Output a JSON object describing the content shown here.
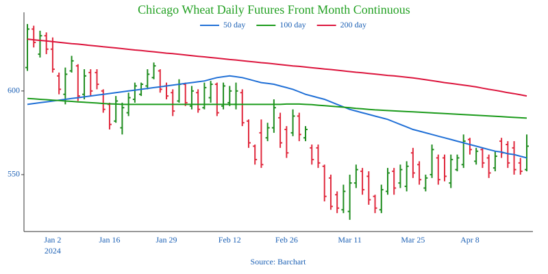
{
  "chart_data": {
    "type": "ohlc",
    "title": "Chicago Wheat Daily Futures Front Month Continuous",
    "source": "Source: Barchart",
    "title_color": "#22a022",
    "text_color": "#1a5fb4",
    "year_label": "2024",
    "categories": [
      null,
      null,
      null,
      null,
      "Jan 2",
      null,
      null,
      null,
      null,
      null,
      null,
      null,
      null,
      "Jan 16",
      null,
      null,
      null,
      null,
      null,
      null,
      null,
      null,
      "Jan 29",
      null,
      null,
      null,
      null,
      null,
      null,
      null,
      null,
      null,
      "Feb 12",
      null,
      null,
      null,
      null,
      null,
      null,
      null,
      null,
      "Feb 26",
      null,
      null,
      null,
      null,
      null,
      null,
      null,
      null,
      null,
      "Mar 11",
      null,
      null,
      null,
      null,
      null,
      null,
      null,
      null,
      null,
      "Mar 25",
      null,
      null,
      null,
      null,
      null,
      null,
      null,
      null,
      "Apr 8",
      null,
      null,
      null,
      null,
      null,
      null,
      null,
      null,
      null
    ],
    "ylim": [
      516,
      647
    ],
    "yticks": [
      550,
      600
    ],
    "up_color": "#1e8c1e",
    "down_color": "#e0283c",
    "open": [
      614,
      637,
      622,
      633,
      625,
      609,
      598,
      612,
      615,
      598,
      611,
      611,
      600,
      592,
      582,
      578,
      587,
      595,
      598,
      603,
      608,
      612,
      603,
      599,
      594,
      604,
      591,
      599,
      590,
      596,
      604,
      591,
      593,
      592,
      599,
      582,
      567,
      575,
      572,
      578,
      584,
      577,
      575,
      585,
      572,
      566,
      566,
      555,
      548,
      538,
      529,
      528,
      545,
      552,
      549,
      537,
      529,
      540,
      552,
      545,
      543,
      563,
      556,
      542,
      550,
      560,
      560,
      545,
      553,
      556,
      571,
      558,
      565,
      560,
      554,
      570,
      568,
      566,
      557,
      553
    ],
    "high": [
      640,
      639,
      636,
      635,
      632,
      611,
      614,
      621,
      616,
      613,
      613,
      613,
      601,
      593,
      597,
      593,
      599,
      605,
      605,
      613,
      617,
      613,
      605,
      601,
      607,
      605,
      603,
      601,
      605,
      606,
      605,
      605,
      603,
      605,
      601,
      583,
      568,
      583,
      581,
      595,
      587,
      579,
      589,
      587,
      579,
      568,
      568,
      556,
      550,
      540,
      544,
      550,
      556,
      554,
      552,
      538,
      544,
      554,
      554,
      556,
      558,
      566,
      558,
      550,
      568,
      562,
      562,
      562,
      562,
      574,
      572,
      566,
      566,
      562,
      564,
      572,
      570,
      570,
      560,
      574
    ],
    "low": [
      612,
      626,
      620,
      622,
      611,
      598,
      592,
      611,
      594,
      595,
      597,
      601,
      587,
      577,
      581,
      574,
      585,
      593,
      597,
      601,
      607,
      599,
      595,
      585,
      593,
      591,
      589,
      587,
      589,
      593,
      585,
      589,
      591,
      589,
      579,
      566,
      556,
      554,
      570,
      575,
      566,
      560,
      573,
      570,
      570,
      556,
      554,
      534,
      529,
      527,
      527,
      523,
      542,
      538,
      532,
      527,
      527,
      538,
      538,
      542,
      540,
      548,
      544,
      540,
      548,
      544,
      546,
      542,
      552,
      554,
      562,
      556,
      554,
      548,
      552,
      560,
      554,
      550,
      550,
      552
    ],
    "close": [
      637,
      629,
      633,
      625,
      613,
      601,
      610,
      618,
      597,
      609,
      600,
      604,
      589,
      580,
      594,
      590,
      596,
      603,
      604,
      610,
      615,
      601,
      597,
      588,
      604,
      593,
      600,
      589,
      602,
      604,
      587,
      603,
      600,
      600,
      581,
      569,
      559,
      556,
      578,
      590,
      569,
      563,
      585,
      574,
      577,
      559,
      557,
      537,
      531,
      530,
      540,
      545,
      553,
      541,
      535,
      530,
      541,
      551,
      542,
      553,
      555,
      551,
      547,
      548,
      565,
      547,
      549,
      559,
      560,
      570,
      565,
      564,
      557,
      551,
      561,
      563,
      557,
      553,
      552,
      567
    ],
    "series": [
      {
        "name": "50 day",
        "color": "#1f6fd6",
        "values": [
          592,
          592.5,
          593,
          593.5,
          594,
          594.5,
          595,
          595.5,
          596,
          596.5,
          597,
          597.5,
          598,
          598.5,
          599,
          599.5,
          600,
          600.5,
          601,
          601.5,
          602,
          602.5,
          603,
          603.5,
          604,
          604.5,
          605,
          605.5,
          606,
          607,
          608,
          608.5,
          609,
          608.5,
          608,
          607,
          606,
          605,
          604.5,
          604,
          603,
          602,
          601,
          599.5,
          598,
          597,
          596,
          595,
          593.5,
          592,
          590.5,
          589,
          588,
          587,
          586,
          585,
          584,
          583,
          581.5,
          580,
          578.5,
          577,
          576,
          575,
          574,
          573,
          572,
          571,
          570,
          569,
          568,
          567,
          566,
          565,
          564,
          563.5,
          562.5,
          562,
          561,
          560
        ]
      },
      {
        "name": "100 day",
        "color": "#1a9a1a",
        "values": [
          595.5,
          595.3,
          595,
          594.8,
          594.5,
          594.3,
          594,
          593.8,
          593.5,
          593.3,
          593,
          592.8,
          592.5,
          592.3,
          592.2,
          592,
          592,
          592,
          592,
          592,
          592,
          592,
          592,
          592,
          592,
          592,
          592,
          592,
          592,
          592,
          592,
          592,
          592,
          592,
          592,
          592,
          592,
          592,
          592,
          592,
          592,
          592.2,
          592.2,
          592.2,
          592,
          591.8,
          591.5,
          591.2,
          590.9,
          590.6,
          590.3,
          590,
          589.6,
          589.3,
          589,
          588.7,
          588.5,
          588.3,
          588.1,
          587.9,
          587.7,
          587.5,
          587.3,
          587.1,
          586.9,
          586.7,
          586.5,
          586.3,
          586.1,
          585.9,
          585.7,
          585.5,
          585.3,
          585.1,
          584.9,
          584.7,
          584.4,
          584.2,
          584,
          583.8
        ]
      },
      {
        "name": "200 day",
        "color": "#dc143c",
        "values": [
          631,
          630.6,
          630.2,
          629.9,
          629.5,
          629.1,
          628.7,
          628.3,
          628,
          627.6,
          627.2,
          626.8,
          626.4,
          626.1,
          625.7,
          625.3,
          624.9,
          624.5,
          624.2,
          623.8,
          623.4,
          623,
          622.6,
          622.3,
          621.9,
          621.5,
          621.1,
          620.7,
          620.4,
          620,
          619.6,
          619.2,
          618.8,
          618.5,
          618.1,
          617.7,
          617.3,
          616.9,
          616.6,
          616.2,
          615.8,
          615.4,
          615,
          614.7,
          614.3,
          613.9,
          613.5,
          613.1,
          612.8,
          612.4,
          612,
          611.6,
          611.2,
          610.9,
          610.5,
          610.1,
          609.7,
          609.3,
          609,
          608.6,
          608.2,
          607.8,
          607.3,
          606.7,
          606.2,
          605.6,
          605,
          604.5,
          604,
          603.5,
          603,
          602.4,
          601.7,
          601,
          600.4,
          599.7,
          599,
          598.4,
          597.7,
          597
        ]
      }
    ]
  }
}
